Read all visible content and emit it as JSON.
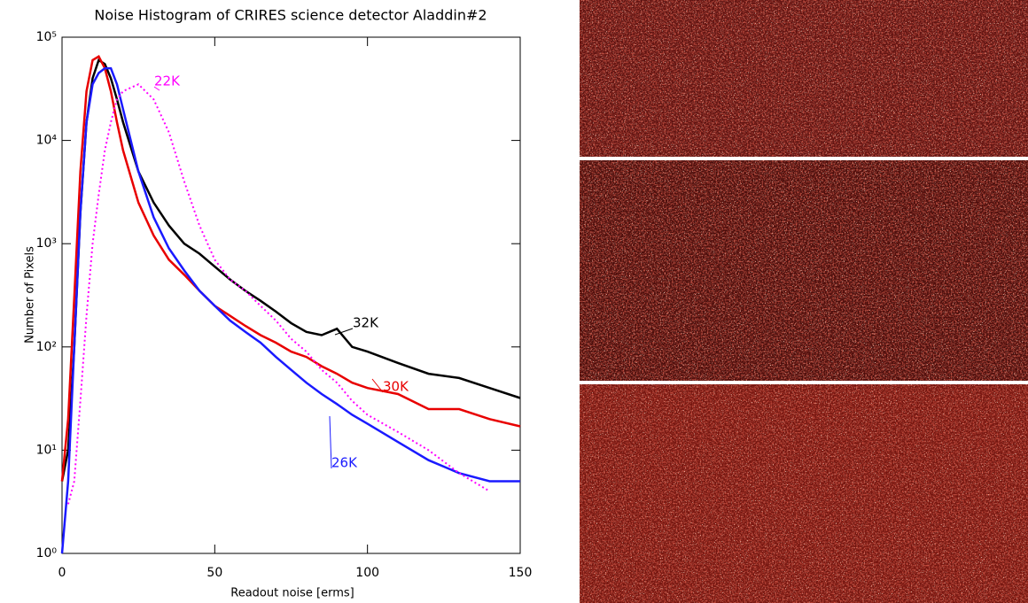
{
  "chart_data": {
    "type": "line",
    "title": "Noise Histogram of CRIRES science detector Aladdin#2",
    "x_label": "Readout noise [erms]",
    "y_label": "Number of Pixels",
    "log_y": true,
    "grid": false,
    "xlim": [
      0,
      150
    ],
    "xticks": [
      0,
      50,
      100,
      150
    ],
    "ylim": [
      1,
      100000
    ],
    "yticks": [
      {
        "value": 1,
        "label": "10⁰"
      },
      {
        "value": 10,
        "label": "10¹"
      },
      {
        "value": 100,
        "label": "10²"
      },
      {
        "value": 1000,
        "label": "10³"
      },
      {
        "value": 10000,
        "label": "10⁴"
      },
      {
        "value": 100000,
        "label": "10⁵"
      }
    ],
    "x": [
      0,
      2,
      4,
      6,
      8,
      10,
      12,
      14,
      16,
      18,
      20,
      25,
      30,
      35,
      40,
      45,
      50,
      55,
      60,
      65,
      70,
      75,
      80,
      85,
      90,
      95,
      100,
      110,
      120,
      130,
      140,
      150
    ],
    "series": [
      {
        "name": "32K",
        "color": "#000000",
        "style": "solid",
        "values": [
          5,
          10,
          100,
          2000,
          15000,
          40000,
          60000,
          55000,
          40000,
          25000,
          15000,
          5000,
          2500,
          1500,
          1000,
          800,
          600,
          450,
          350,
          280,
          220,
          170,
          140,
          130,
          150,
          100,
          90,
          70,
          55,
          50,
          40,
          32
        ]
      },
      {
        "name": "30K",
        "color": "#e80000",
        "style": "solid",
        "values": [
          5,
          20,
          300,
          5000,
          30000,
          60000,
          65000,
          50000,
          30000,
          15000,
          8000,
          2500,
          1200,
          700,
          500,
          350,
          250,
          200,
          160,
          130,
          110,
          90,
          80,
          65,
          55,
          45,
          40,
          35,
          25,
          25,
          20,
          17
        ]
      },
      {
        "name": "26K",
        "color": "#1a1aff",
        "style": "solid",
        "values": [
          1,
          5,
          100,
          2000,
          15000,
          35000,
          45000,
          50000,
          50000,
          35000,
          20000,
          5000,
          1800,
          900,
          550,
          350,
          250,
          180,
          140,
          110,
          80,
          60,
          45,
          35,
          28,
          22,
          18,
          12,
          8,
          6,
          5,
          5
        ]
      },
      {
        "name": "22K",
        "color": "#ff00ff",
        "style": "dotted",
        "values": [
          null,
          3,
          5,
          30,
          200,
          1000,
          3000,
          8000,
          15000,
          25000,
          30000,
          35000,
          25000,
          12000,
          4000,
          1500,
          700,
          450,
          350,
          250,
          180,
          120,
          90,
          60,
          45,
          30,
          22,
          15,
          10,
          6,
          4,
          null
        ]
      }
    ]
  }
}
